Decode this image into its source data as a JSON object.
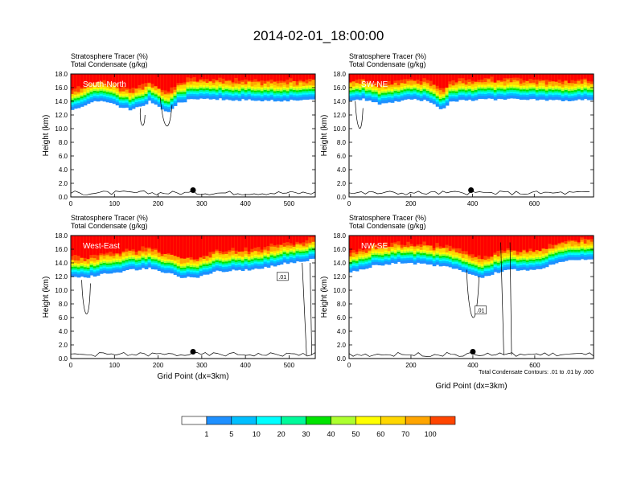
{
  "title": "2014-02-01_18:00:00",
  "chart_data": [
    {
      "type": "heatmap",
      "header_line1": "Stratosphere Tracer   (%)",
      "header_line2": "Total Condensate   (g/kg)",
      "panel_label": "South-North",
      "ylabel": "Height (km)",
      "xlabel": "",
      "xlim": [
        0,
        560
      ],
      "ylim": [
        0,
        18
      ],
      "xticks": [
        "0",
        "100",
        "200",
        "300",
        "400",
        "500"
      ],
      "xtick_values": [
        0,
        100,
        200,
        300,
        400,
        500
      ],
      "yticks": [
        "0.0",
        "2.0",
        "4.0",
        "6.0",
        "8.0",
        "10.0",
        "12.0",
        "14.0",
        "16.0",
        "18.0"
      ],
      "contour_labels": [],
      "marker": {
        "x": 280,
        "y": 1.0
      },
      "tracer_base_profile": [
        [
          0,
          12.5
        ],
        [
          20,
          13.0
        ],
        [
          40,
          13.8
        ],
        [
          60,
          14.0
        ],
        [
          80,
          14.0
        ],
        [
          100,
          13.5
        ],
        [
          120,
          13.0
        ],
        [
          140,
          12.8
        ],
        [
          160,
          13.2
        ],
        [
          180,
          14.0
        ],
        [
          200,
          13.5
        ],
        [
          220,
          12.2
        ],
        [
          240,
          13.5
        ],
        [
          270,
          14.2
        ],
        [
          320,
          14.3
        ],
        [
          400,
          14.2
        ],
        [
          480,
          14.1
        ],
        [
          560,
          14.3
        ]
      ]
    },
    {
      "type": "heatmap",
      "header_line1": "Stratosphere Tracer   (%)",
      "header_line2": "Total Condensate   (g/kg)",
      "panel_label": "SW-NE",
      "ylabel": "Height (km)",
      "xlabel": "",
      "xlim": [
        0,
        792
      ],
      "ylim": [
        0,
        18
      ],
      "xticks": [
        "0",
        "200",
        "400",
        "600"
      ],
      "xtick_values": [
        0,
        200,
        400,
        600
      ],
      "yticks": [
        "0.0",
        "2.0",
        "4.0",
        "6.0",
        "8.0",
        "10.0",
        "12.0",
        "14.0",
        "16.0",
        "18.0"
      ],
      "contour_labels": [],
      "marker": {
        "x": 395,
        "y": 1.0
      },
      "tracer_base_profile": [
        [
          0,
          14.2
        ],
        [
          50,
          14.3
        ],
        [
          100,
          13.6
        ],
        [
          150,
          14.0
        ],
        [
          200,
          14.2
        ],
        [
          250,
          14.2
        ],
        [
          280,
          13.5
        ],
        [
          300,
          12.8
        ],
        [
          330,
          14.0
        ],
        [
          400,
          14.2
        ],
        [
          500,
          14.3
        ],
        [
          600,
          14.2
        ],
        [
          700,
          14.1
        ],
        [
          792,
          14.3
        ]
      ]
    },
    {
      "type": "heatmap",
      "header_line1": "Stratosphere Tracer   (%)",
      "header_line2": "Total Condensate   (g/kg)",
      "panel_label": "West-East",
      "ylabel": "Height (km)",
      "xlabel": "Grid Point (dx=3km)",
      "xlim": [
        0,
        560
      ],
      "ylim": [
        0,
        18
      ],
      "xticks": [
        "0",
        "100",
        "200",
        "300",
        "400",
        "500"
      ],
      "xtick_values": [
        0,
        100,
        200,
        300,
        400,
        500
      ],
      "yticks": [
        "0.0",
        "2.0",
        "4.0",
        "6.0",
        "8.0",
        "10.0",
        "12.0",
        "14.0",
        "16.0",
        "18.0"
      ],
      "contour_labels": [
        {
          "text": ".01",
          "x": 485,
          "y": 11.9
        }
      ],
      "marker": {
        "x": 280,
        "y": 1.0
      },
      "tracer_base_profile": [
        [
          0,
          12.0
        ],
        [
          30,
          11.8
        ],
        [
          60,
          12.2
        ],
        [
          100,
          12.6
        ],
        [
          140,
          13.0
        ],
        [
          180,
          13.2
        ],
        [
          220,
          12.5
        ],
        [
          260,
          11.8
        ],
        [
          300,
          12.0
        ],
        [
          340,
          12.8
        ],
        [
          400,
          13.0
        ],
        [
          440,
          13.2
        ],
        [
          480,
          13.8
        ],
        [
          520,
          14.2
        ],
        [
          560,
          14.5
        ]
      ]
    },
    {
      "type": "heatmap",
      "header_line1": "Stratosphere Tracer   (%)",
      "header_line2": "Total Condensate   (g/kg)",
      "panel_label": "NW-SE",
      "ylabel": "Height (km)",
      "xlabel": "Grid Point (dx=3km)",
      "xlim": [
        0,
        790
      ],
      "ylim": [
        0,
        18
      ],
      "xticks": [
        "0",
        "200",
        "400",
        "600"
      ],
      "xtick_values": [
        0,
        200,
        400,
        600
      ],
      "yticks": [
        "0.0",
        "2.0",
        "4.0",
        "6.0",
        "8.0",
        "10.0",
        "12.0",
        "14.0",
        "16.0",
        "18.0"
      ],
      "contour_labels": [
        {
          "text": ".01",
          "x": 425,
          "y": 7.0
        }
      ],
      "marker": {
        "x": 400,
        "y": 1.0
      },
      "footnote": "Total Condensate Contours: .01 to .01 by .000",
      "tracer_base_profile": [
        [
          0,
          12.5
        ],
        [
          40,
          13.0
        ],
        [
          80,
          13.6
        ],
        [
          150,
          14.0
        ],
        [
          250,
          13.8
        ],
        [
          330,
          13.4
        ],
        [
          380,
          12.6
        ],
        [
          420,
          11.8
        ],
        [
          470,
          12.5
        ],
        [
          520,
          13.0
        ],
        [
          580,
          12.8
        ],
        [
          640,
          13.5
        ],
        [
          700,
          14.2
        ],
        [
          790,
          14.5
        ]
      ]
    }
  ],
  "colorbar": {
    "labels": [
      "1",
      "5",
      "10",
      "20",
      "30",
      "40",
      "50",
      "60",
      "70",
      "100"
    ],
    "colors": [
      "#ffffff",
      "#1e90ff",
      "#00bfff",
      "#00ffff",
      "#00fa9a",
      "#00e400",
      "#adff2f",
      "#ffff00",
      "#ffd700",
      "#ffa500",
      "#ff4500",
      "#ff0000"
    ]
  }
}
